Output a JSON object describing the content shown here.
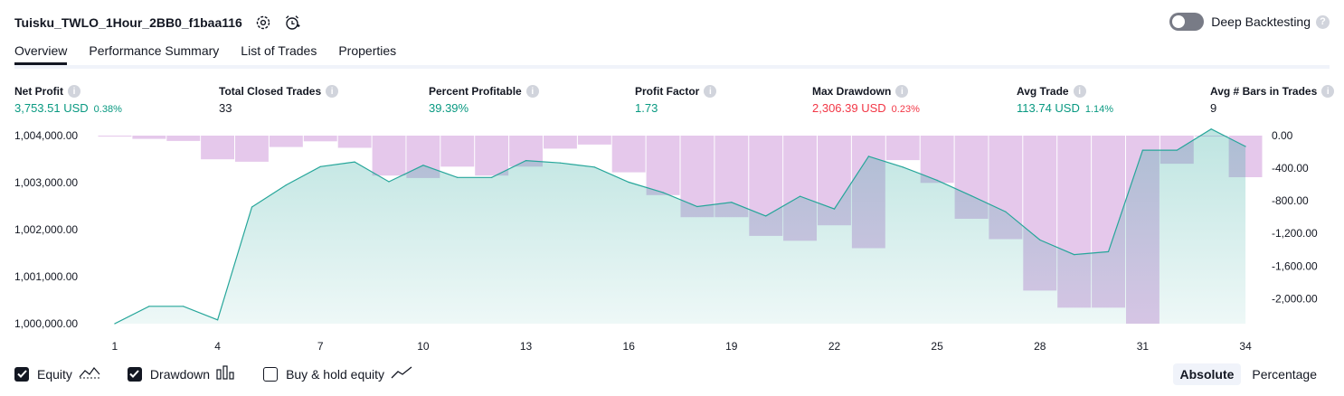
{
  "header": {
    "title": "Tuisku_TWLO_1Hour_2BB0_f1baa116",
    "deep_backtesting_label": "Deep Backtesting"
  },
  "tabs": [
    "Overview",
    "Performance Summary",
    "List of Trades",
    "Properties"
  ],
  "metrics": [
    {
      "label": "Net Profit",
      "value": "3,753.51 USD",
      "pct": "0.38%",
      "tone": "pos"
    },
    {
      "label": "Total Closed Trades",
      "value": "33",
      "pct": "",
      "tone": "neutral"
    },
    {
      "label": "Percent Profitable",
      "value": "39.39%",
      "pct": "",
      "tone": "pos"
    },
    {
      "label": "Profit Factor",
      "value": "1.73",
      "pct": "",
      "tone": "pos"
    },
    {
      "label": "Max Drawdown",
      "value": "2,306.39 USD",
      "pct": "0.23%",
      "tone": "neg"
    },
    {
      "label": "Avg Trade",
      "value": "113.74 USD",
      "pct": "1.14%",
      "tone": "pos"
    },
    {
      "label": "Avg # Bars in Trades",
      "value": "9",
      "pct": "",
      "tone": "neutral"
    }
  ],
  "legend": {
    "equity": "Equity",
    "drawdown": "Drawdown",
    "buy_hold": "Buy & hold equity"
  },
  "mode": {
    "absolute": "Absolute",
    "percentage": "Percentage"
  },
  "chart_data": {
    "type": "line",
    "x_ticks": [
      "1",
      "4",
      "7",
      "10",
      "13",
      "16",
      "19",
      "22",
      "25",
      "28",
      "31",
      "34"
    ],
    "left_axis": {
      "ticks": [
        "1,000,000.00",
        "1,001,000.00",
        "1,002,000.00",
        "1,003,000.00",
        "1,004,000.00"
      ],
      "ylim": [
        1000000,
        1004000
      ]
    },
    "right_axis": {
      "ticks": [
        "0.00",
        "-400.00",
        "-800.00",
        "-1,200.00",
        "-1,600.00",
        "-2,000.00"
      ],
      "ylim": [
        -2306.39,
        0
      ]
    },
    "series": [
      {
        "name": "Equity",
        "type": "area",
        "axis": "left",
        "color": "#26a69a",
        "x": [
          1,
          2,
          3,
          4,
          5,
          6,
          7,
          8,
          9,
          10,
          11,
          12,
          13,
          14,
          15,
          16,
          17,
          18,
          19,
          20,
          21,
          22,
          23,
          24,
          25,
          26,
          27,
          28,
          29,
          30,
          31,
          32,
          33,
          34
        ],
        "values": [
          1000000,
          1000370,
          1000370,
          1000080,
          1002480,
          1002950,
          1003340,
          1003440,
          1003020,
          1003370,
          1003110,
          1003110,
          1003470,
          1003420,
          1003330,
          1003010,
          1002790,
          1002490,
          1002580,
          1002290,
          1002710,
          1002440,
          1003560,
          1003330,
          1003050,
          1002720,
          1002380,
          1001780,
          1001470,
          1001530,
          1003690,
          1003690,
          1004140,
          1003770
        ]
      },
      {
        "name": "Drawdown",
        "type": "bar",
        "axis": "right",
        "color": "#e1bee7",
        "x": [
          1,
          2,
          3,
          4,
          5,
          6,
          7,
          8,
          9,
          10,
          11,
          12,
          13,
          14,
          15,
          16,
          17,
          18,
          19,
          20,
          21,
          22,
          23,
          24,
          25,
          26,
          27,
          28,
          29,
          30,
          31,
          32,
          33,
          34
        ],
        "values": [
          -8,
          -40,
          -65,
          -290,
          -320,
          -140,
          -70,
          -150,
          -490,
          -520,
          -380,
          -490,
          -380,
          -160,
          -110,
          -450,
          -730,
          -1000,
          -1000,
          -1230,
          -1290,
          -1100,
          -1380,
          -300,
          -580,
          -1020,
          -1270,
          -1900,
          -2110,
          -2110,
          -2306.39,
          -345,
          0,
          -510
        ]
      }
    ],
    "legend_position": "bottom-left"
  }
}
